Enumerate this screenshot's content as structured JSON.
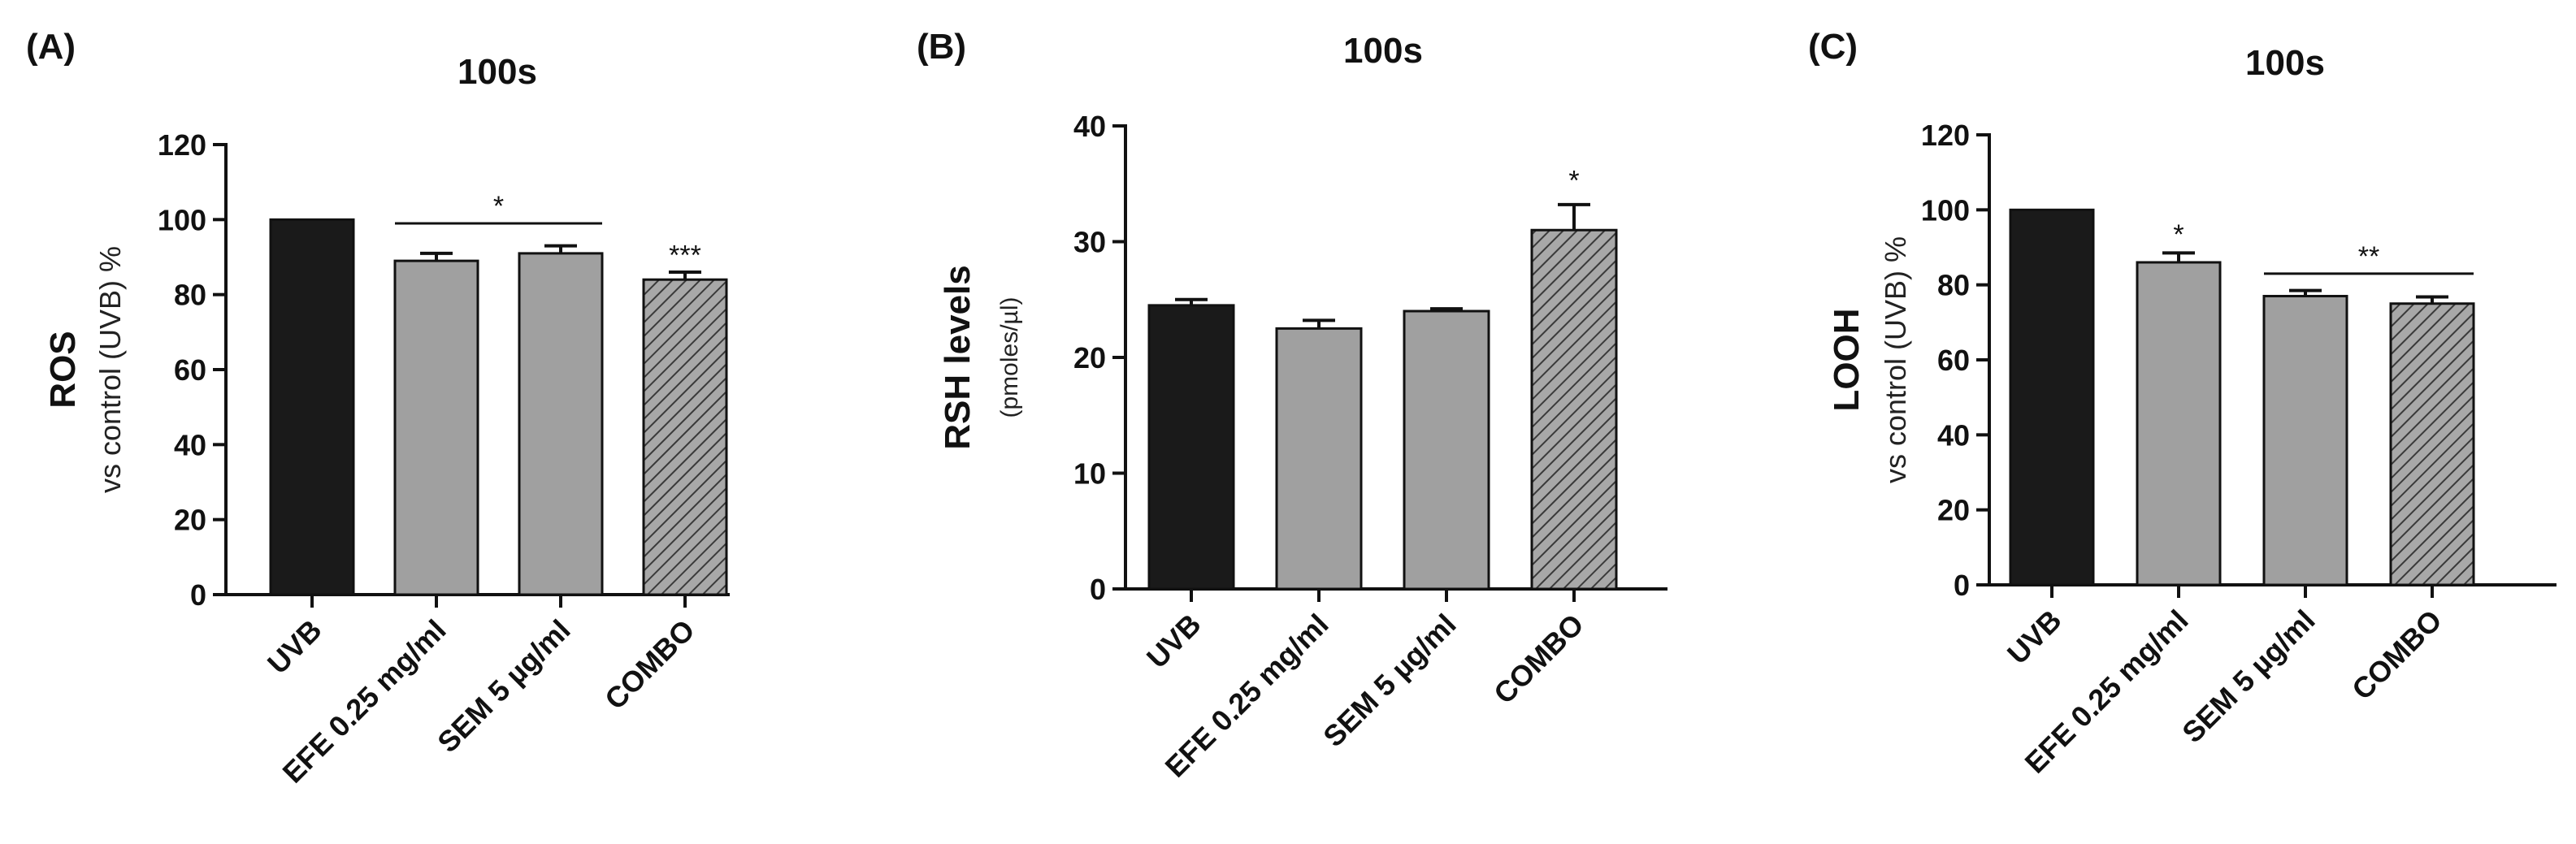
{
  "chart_data": [
    {
      "type": "bar",
      "panel_label": "(A)",
      "title": "100s",
      "ylabel_main": "ROS",
      "ylabel_sub": "vs control (UVB) %",
      "categories": [
        "UVB",
        "EFE 0.25 mg/ml",
        "SEM 5 µg/ml",
        "COMBO"
      ],
      "values": [
        100,
        89,
        91,
        84
      ],
      "errors": [
        0,
        2,
        2,
        2
      ],
      "fills": [
        "#1a1a1a",
        "#a0a0a0",
        "#a0a0a0",
        "hatch"
      ],
      "yticks": [
        0,
        20,
        40,
        60,
        80,
        100,
        120
      ],
      "ylim": [
        0,
        120
      ],
      "annotations": [
        {
          "text": "*",
          "bracket_from": 1,
          "bracket_to": 2,
          "y": 99
        },
        {
          "text": "***",
          "bar": 3,
          "y": 88
        }
      ],
      "grid": false,
      "legend": "none"
    },
    {
      "type": "bar",
      "panel_label": "(B)",
      "title": "100s",
      "ylabel_main": "RSH levels",
      "ylabel_sub": "(pmoles/µl)",
      "categories": [
        "UVB",
        "EFE 0.25 mg/ml",
        "SEM 5 µg/ml",
        "COMBO"
      ],
      "values": [
        24.5,
        22.5,
        24,
        31
      ],
      "errors": [
        0.5,
        0.7,
        0.2,
        2.2
      ],
      "fills": [
        "#1a1a1a",
        "#a0a0a0",
        "#a0a0a0",
        "hatch"
      ],
      "yticks": [
        0,
        10,
        20,
        30,
        40
      ],
      "ylim": [
        0,
        40
      ],
      "annotations": [
        {
          "text": "*",
          "bar": 3,
          "y": 34.5
        }
      ],
      "grid": false,
      "legend": "none"
    },
    {
      "type": "bar",
      "panel_label": "(C)",
      "title": "100s",
      "ylabel_main": "LOOH",
      "ylabel_sub": "vs control (UVB) %",
      "categories": [
        "UVB",
        "EFE 0.25 mg/ml",
        "SEM 5 µg/ml",
        "COMBO"
      ],
      "values": [
        100,
        86,
        77,
        75
      ],
      "errors": [
        0,
        2.5,
        1.5,
        1.8
      ],
      "fills": [
        "#1a1a1a",
        "#a0a0a0",
        "#a0a0a0",
        "hatch"
      ],
      "yticks": [
        0,
        20,
        40,
        60,
        80,
        100,
        120
      ],
      "ylim": [
        0,
        120
      ],
      "annotations": [
        {
          "text": "*",
          "bar": 1,
          "y": 91
        },
        {
          "text": "**",
          "bracket_from": 2,
          "bracket_to": 3,
          "y": 83
        }
      ],
      "grid": false,
      "legend": "none"
    }
  ]
}
